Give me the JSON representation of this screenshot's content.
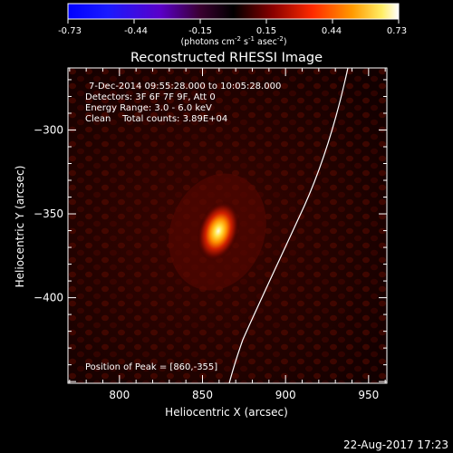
{
  "colorbar": {
    "ticks": [
      "-0.73",
      "-0.44",
      "-0.15",
      "0.15",
      "0.44",
      "0.73"
    ],
    "units_main": "(photons cm",
    "units_exp1": "-2",
    "units_mid": " s",
    "units_exp2": "-1",
    "units_mid2": " asec",
    "units_exp3": "-2",
    "units_close": ")"
  },
  "title": "Reconstructed RHESSI Image",
  "info": {
    "line1": "7-Dec-2014 09:55:28.000 to 10:05:28.000",
    "line2": "Detectors: 3F 6F 7F 9F, Att 0",
    "line3": "Energy Range: 3.0 - 6.0 keV",
    "line4": "Clean    Total counts: 3.89E+04",
    "peak": "Position of Peak = [860,-355]"
  },
  "axes": {
    "xlabel": "Heliocentric X (arcsec)",
    "ylabel": "Heliocentric Y (arcsec)",
    "xticks": [
      800,
      850,
      900,
      950
    ],
    "yticks": [
      -300,
      -350,
      -400
    ],
    "xlim": [
      769,
      961
    ],
    "ylim": [
      -451,
      -263
    ]
  },
  "image": {
    "peak_x": 860,
    "peak_y": -355,
    "colormap": "blue-white-red (idl)"
  },
  "timestamp": "22-Aug-2017 17:23"
}
